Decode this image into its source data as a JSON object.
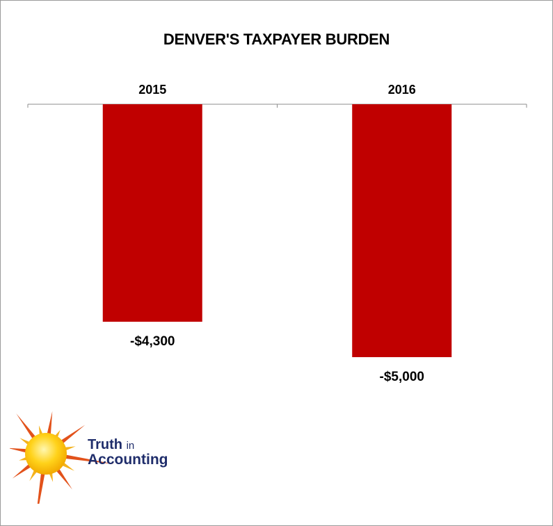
{
  "chart_data": {
    "type": "bar",
    "title": "DENVER'S TAXPAYER BURDEN",
    "categories": [
      "2015",
      "2016"
    ],
    "values": [
      -4300,
      -5000
    ],
    "value_labels": [
      "-$4,300",
      "-$5,000"
    ],
    "ylim": [
      -5000,
      0
    ],
    "x_axis_position": "top",
    "grid": false,
    "bar_color": "#c00000"
  },
  "logo": {
    "line1_main": "Truth",
    "line1_small": "in",
    "line2": "Accounting"
  }
}
